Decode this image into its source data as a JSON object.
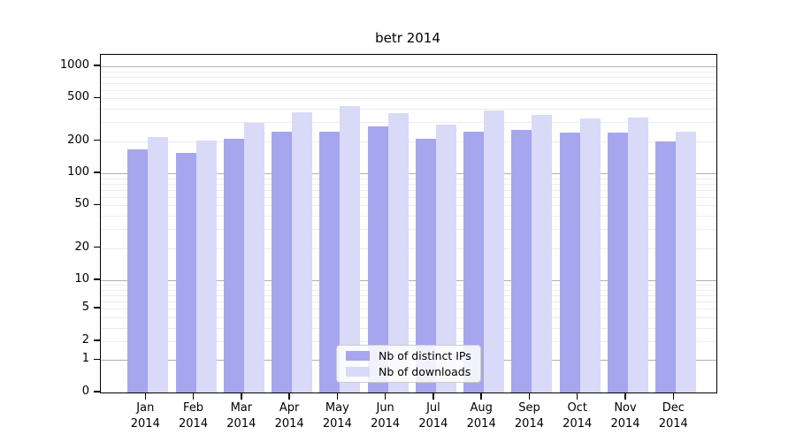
{
  "chart_data": {
    "type": "bar",
    "title": "betr 2014",
    "xlabel": "",
    "ylabel": "",
    "yscale": "symlog",
    "ylim": [
      0,
      1280
    ],
    "yticks": [
      0,
      1,
      2,
      5,
      10,
      20,
      50,
      100,
      200,
      500,
      1000
    ],
    "categories": [
      "Jan 2014",
      "Feb 2014",
      "Mar 2014",
      "Apr 2014",
      "May 2014",
      "Jun 2014",
      "Jul 2014",
      "Aug 2014",
      "Sep 2014",
      "Oct 2014",
      "Nov 2014",
      "Dec 2014"
    ],
    "x_tick_month_labels": [
      "Jan",
      "Feb",
      "Mar",
      "Apr",
      "May",
      "Jun",
      "Jul",
      "Aug",
      "Sep",
      "Oct",
      "Nov",
      "Dec"
    ],
    "x_tick_year_label": "2014",
    "series": [
      {
        "name": "Nb of distinct IPs",
        "color": "#a6a6ee",
        "values": [
          168,
          156,
          212,
          246,
          246,
          276,
          212,
          246,
          256,
          242,
          240,
          198
        ]
      },
      {
        "name": "Nb of downloads",
        "color": "#d9d9f8",
        "values": [
          220,
          204,
          298,
          375,
          428,
          368,
          287,
          385,
          354,
          325,
          334,
          246
        ]
      }
    ],
    "grid": {
      "major_lines": [
        1,
        10,
        100,
        1000
      ],
      "minor_lines": [
        2,
        3,
        4,
        5,
        6,
        7,
        8,
        9,
        20,
        30,
        40,
        50,
        60,
        70,
        80,
        90,
        200,
        300,
        400,
        500,
        600,
        700,
        800,
        900
      ],
      "major_color": "#b0b0b0",
      "minor_color": "#ececec"
    },
    "legend_position": "lower center"
  }
}
